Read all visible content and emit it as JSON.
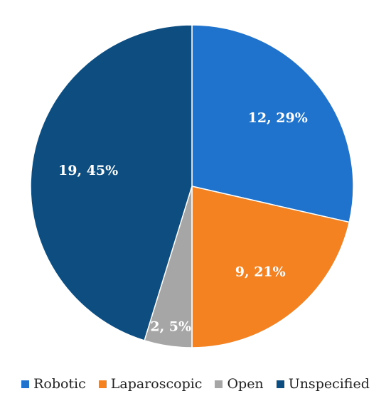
{
  "chart_data": {
    "type": "pie",
    "title": "",
    "categories": [
      "Robotic",
      "Laparoscopic",
      "Open",
      "Unspecified"
    ],
    "values": [
      12,
      9,
      2,
      19
    ],
    "percent_labels": [
      "12, 29%",
      "9, 21%",
      "2, 5%",
      "19, 45%"
    ],
    "colors": [
      "#1f73cc",
      "#f58220",
      "#a6a6a6",
      "#0d4d80"
    ],
    "start_angle_deg": 0,
    "direction": "clockwise",
    "legend_position": "bottom"
  }
}
